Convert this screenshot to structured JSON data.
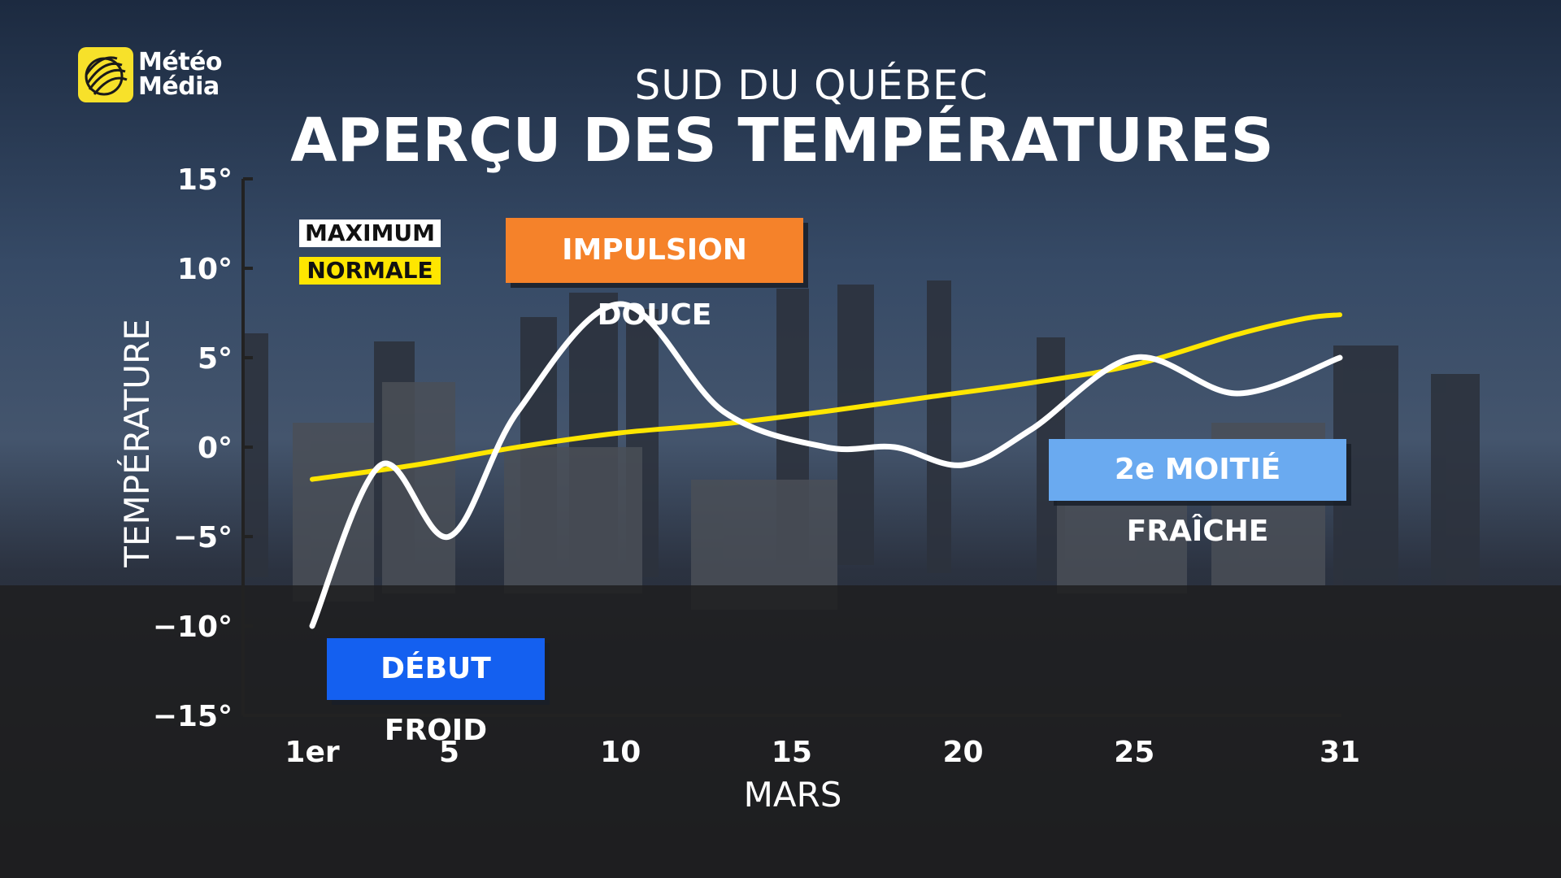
{
  "brand": {
    "line1": "Météo",
    "line2": "Média",
    "accent_color": "#f7e12a"
  },
  "header": {
    "subtitle": "SUD DU QUÉBEC",
    "title": "APERÇU DES TEMPÉRATURES"
  },
  "legend": {
    "maximum": {
      "label": "MAXIMUM",
      "color": "#ffffff"
    },
    "normale": {
      "label": "NORMALE",
      "color": "#ffe600"
    }
  },
  "callouts": {
    "impulsion": {
      "label": "IMPULSION DOUCE",
      "color": "#f5822a"
    },
    "moitie": {
      "label": "2e MOITIÉ FRAÎCHE",
      "color": "#6aaaf0"
    },
    "debut": {
      "label": "DÉBUT FROID",
      "color": "#1460f0"
    }
  },
  "chart_data": {
    "type": "line",
    "xlabel": "MARS",
    "ylabel": "TEMPÉRATURE",
    "xlim": [
      1,
      31
    ],
    "ylim": [
      -15,
      15
    ],
    "x_ticks": [
      {
        "value": 1,
        "label": "1er"
      },
      {
        "value": 5,
        "label": "5"
      },
      {
        "value": 10,
        "label": "10"
      },
      {
        "value": 15,
        "label": "15"
      },
      {
        "value": 20,
        "label": "20"
      },
      {
        "value": 25,
        "label": "25"
      },
      {
        "value": 31,
        "label": "31"
      }
    ],
    "y_ticks": [
      {
        "value": 15,
        "label": "15°"
      },
      {
        "value": 10,
        "label": "10°"
      },
      {
        "value": 5,
        "label": "5°"
      },
      {
        "value": 0,
        "label": "0°"
      },
      {
        "value": -5,
        "label": "−5°"
      },
      {
        "value": -10,
        "label": "−10°"
      },
      {
        "value": -15,
        "label": "−15°"
      }
    ],
    "grid": false,
    "legend_position": "top-left",
    "series": [
      {
        "name": "MAXIMUM",
        "color": "#ffffff",
        "x": [
          1,
          3,
          5,
          7,
          10,
          13,
          16,
          18,
          20,
          22,
          25,
          28,
          31
        ],
        "y": [
          -10,
          -1,
          -5,
          2,
          8,
          2,
          0,
          0,
          -1,
          1,
          5,
          3,
          5
        ]
      },
      {
        "name": "NORMALE",
        "color": "#ffe600",
        "x": [
          1,
          4,
          7,
          10,
          13,
          16,
          19,
          22,
          25,
          28,
          30,
          31
        ],
        "y": [
          -1.8,
          -1,
          0,
          0.8,
          1.3,
          2,
          2.8,
          3.6,
          4.6,
          6.3,
          7.2,
          7.4
        ]
      }
    ]
  }
}
